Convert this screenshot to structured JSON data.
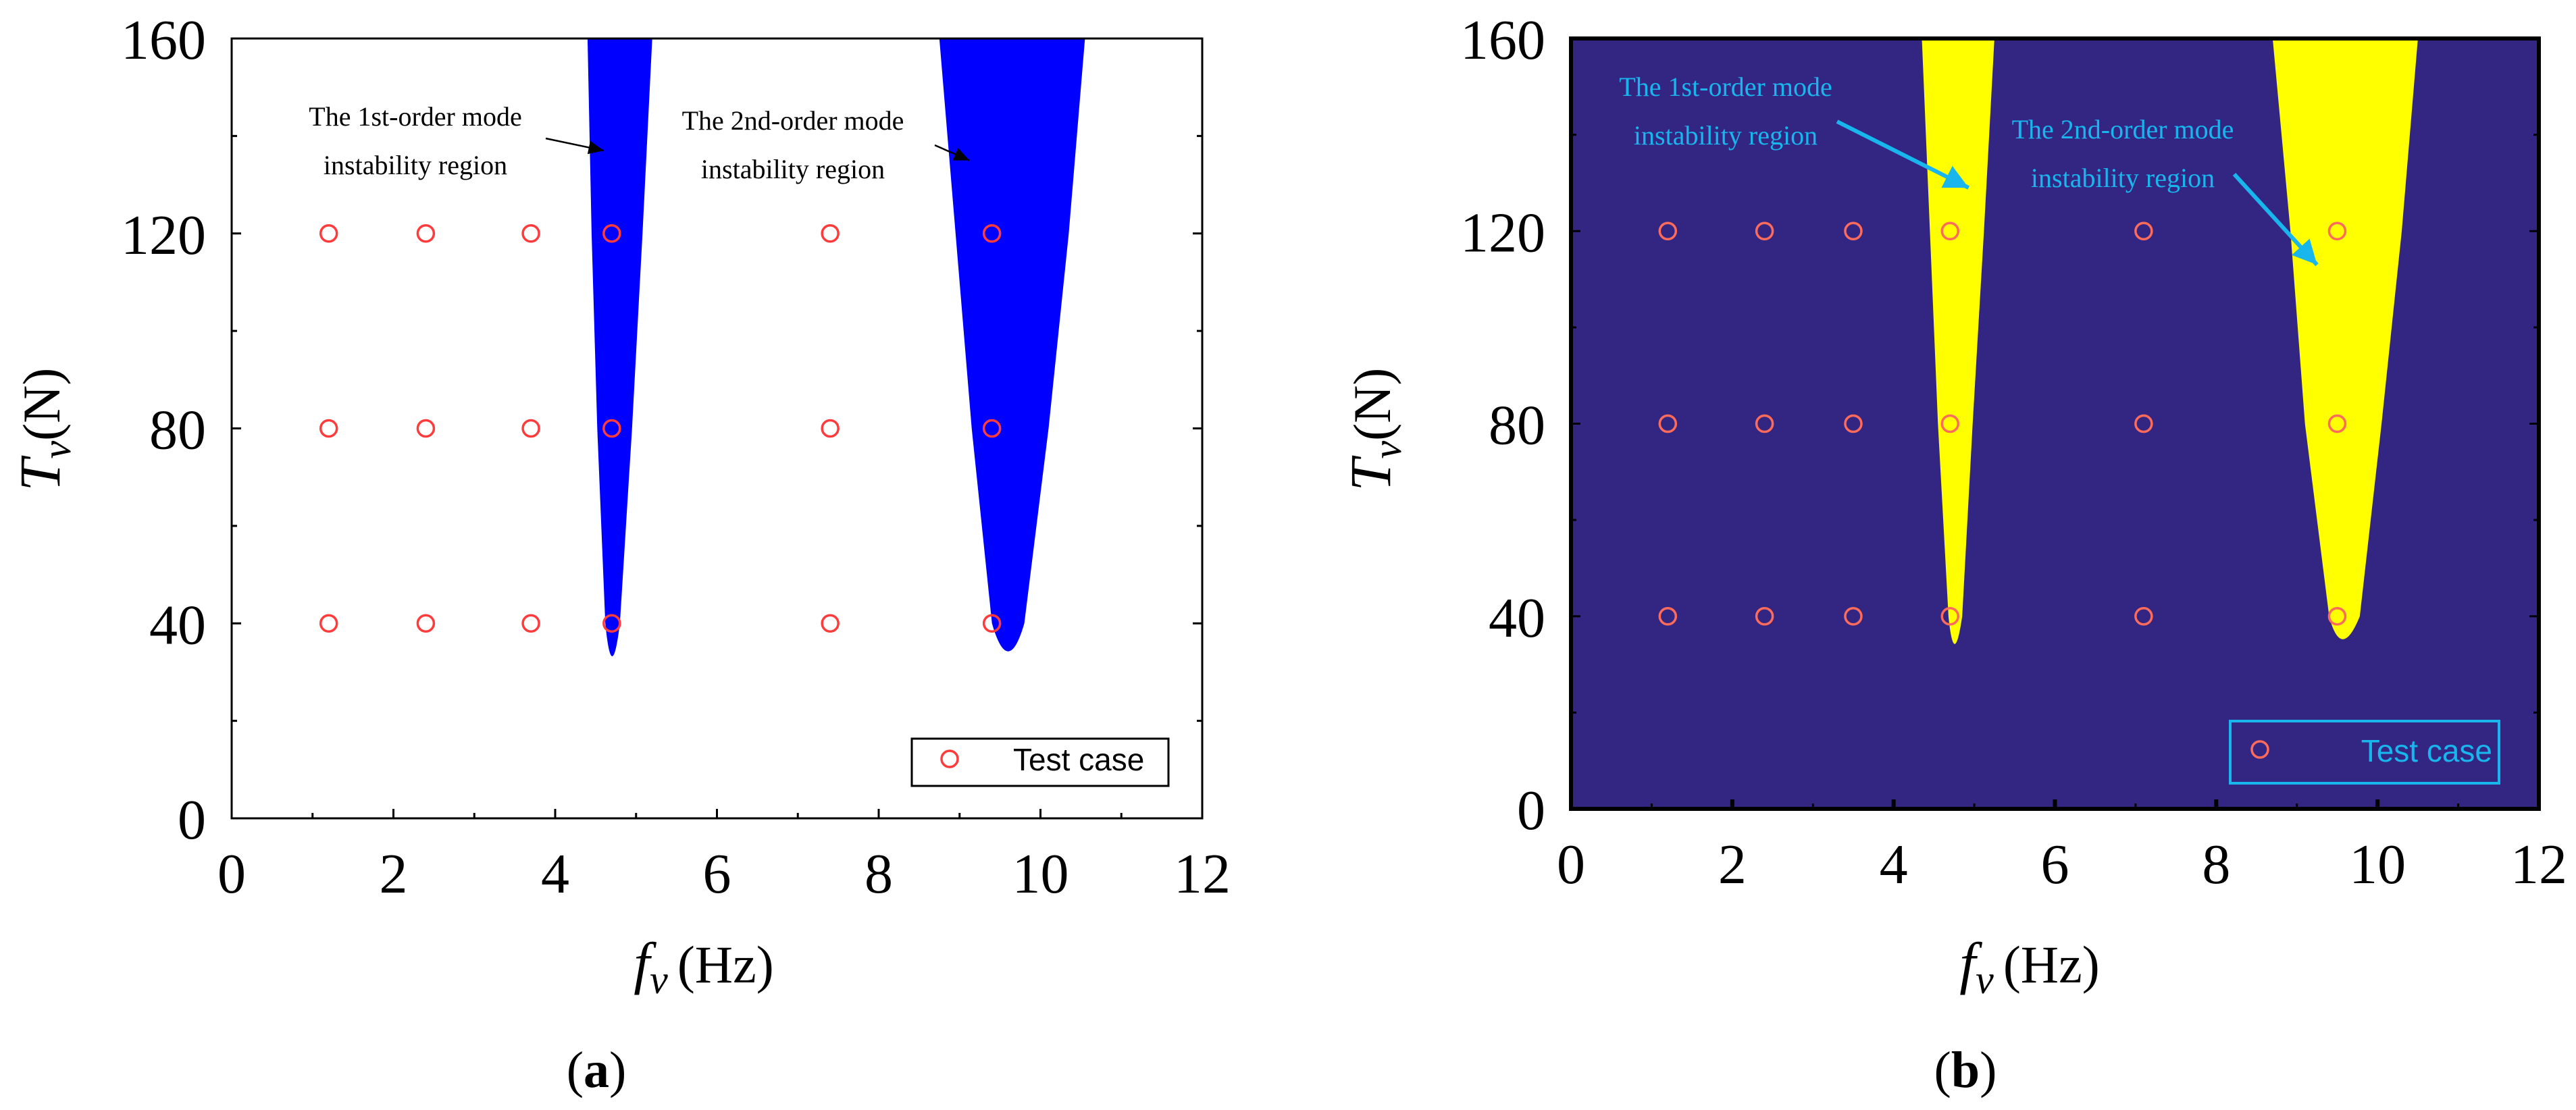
{
  "chart_data": [
    {
      "type": "scatter",
      "panel": "(a)",
      "panel_letter": "a",
      "xlabel_symbol": "f",
      "xlabel_sub": "v",
      "xlabel_unit": "(Hz)",
      "ylabel_symbol": "T",
      "ylabel_sub": "v",
      "ylabel_unit": "(N)",
      "xlim": [
        0,
        12
      ],
      "ylim": [
        0,
        160
      ],
      "xticks": [
        0,
        2,
        4,
        6,
        8,
        10,
        12
      ],
      "yticks": [
        0,
        40,
        80,
        120,
        160
      ],
      "background_color": "#ffffff",
      "region_color": "#0000ff",
      "marker_color": "#ff3b3b",
      "annotation_color": "#000000",
      "regions": [
        {
          "name": "The 1st-order mode instability region",
          "label_line1": "The 1st-order mode",
          "label_line2": "instability region",
          "tip": [
            4.7,
            29
          ],
          "left": [
            [
              4.62,
              40
            ],
            [
              4.52,
              80
            ],
            [
              4.45,
              120
            ],
            [
              4.4,
              160
            ]
          ],
          "right": [
            [
              4.8,
              40
            ],
            [
              4.95,
              80
            ],
            [
              5.08,
              120
            ],
            [
              5.2,
              160
            ]
          ],
          "arrow_to": [
            4.6,
            137
          ]
        },
        {
          "name": "The 2nd-order mode instability region",
          "label_line1": "The 2nd-order mode",
          "label_line2": "instability region",
          "tip": [
            9.6,
            31
          ],
          "left": [
            [
              9.4,
              40
            ],
            [
              9.15,
              80
            ],
            [
              8.95,
              120
            ],
            [
              8.75,
              160
            ]
          ],
          "right": [
            [
              9.8,
              40
            ],
            [
              10.1,
              80
            ],
            [
              10.35,
              120
            ],
            [
              10.55,
              160
            ]
          ],
          "arrow_to": [
            9.12,
            135
          ]
        }
      ],
      "series": [
        {
          "name": "Test case",
          "x": [
            1.2,
            2.4,
            3.7,
            4.7,
            7.4,
            9.4,
            1.2,
            2.4,
            3.7,
            4.7,
            7.4,
            9.4,
            1.2,
            2.4,
            3.7,
            4.7,
            7.4,
            9.4
          ],
          "y": [
            120,
            120,
            120,
            120,
            120,
            120,
            80,
            80,
            80,
            80,
            80,
            80,
            40,
            40,
            40,
            40,
            40,
            40
          ]
        }
      ],
      "legend": "bottom-right"
    },
    {
      "type": "scatter",
      "panel": "(b)",
      "panel_letter": "b",
      "xlabel_symbol": "f",
      "xlabel_sub": "v",
      "xlabel_unit": "(Hz)",
      "ylabel_symbol": "T",
      "ylabel_sub": "v",
      "ylabel_unit": "(N)",
      "xlim": [
        0,
        12
      ],
      "ylim": [
        0,
        160
      ],
      "xticks": [
        0,
        2,
        4,
        6,
        8,
        10,
        12
      ],
      "yticks": [
        0,
        40,
        80,
        120,
        160
      ],
      "background_color": "#332683",
      "region_color": "#ffff00",
      "marker_color": "#ff6b5a",
      "annotation_color": "#19b6ee",
      "regions": [
        {
          "name": "The 1st-order mode instability region",
          "label_line1": "The 1st-order mode",
          "label_line2": "instability region",
          "tip": [
            4.75,
            31
          ],
          "left": [
            [
              4.68,
              40
            ],
            [
              4.55,
              80
            ],
            [
              4.45,
              120
            ],
            [
              4.35,
              160
            ]
          ],
          "right": [
            [
              4.85,
              40
            ],
            [
              4.98,
              80
            ],
            [
              5.12,
              120
            ],
            [
              5.25,
              160
            ]
          ],
          "arrow_to": [
            4.93,
            129
          ]
        },
        {
          "name": "The 2nd-order mode instability region",
          "label_line1": "The 2nd-order mode",
          "label_line2": "instability region",
          "tip": [
            9.55,
            33
          ],
          "left": [
            [
              9.4,
              40
            ],
            [
              9.1,
              80
            ],
            [
              8.92,
              120
            ],
            [
              8.7,
              160
            ]
          ],
          "right": [
            [
              9.78,
              40
            ],
            [
              10.05,
              80
            ],
            [
              10.3,
              120
            ],
            [
              10.5,
              160
            ]
          ],
          "arrow_to": [
            9.25,
            113
          ]
        }
      ],
      "series": [
        {
          "name": "Test case",
          "x": [
            1.2,
            2.4,
            3.5,
            4.7,
            7.1,
            9.5,
            1.2,
            2.4,
            3.5,
            4.7,
            7.1,
            9.5,
            1.2,
            2.4,
            3.5,
            4.7,
            7.1,
            9.5
          ],
          "y": [
            120,
            120,
            120,
            120,
            120,
            120,
            80,
            80,
            80,
            80,
            80,
            80,
            40,
            40,
            40,
            40,
            40,
            40
          ]
        }
      ],
      "legend": "bottom-right"
    }
  ]
}
